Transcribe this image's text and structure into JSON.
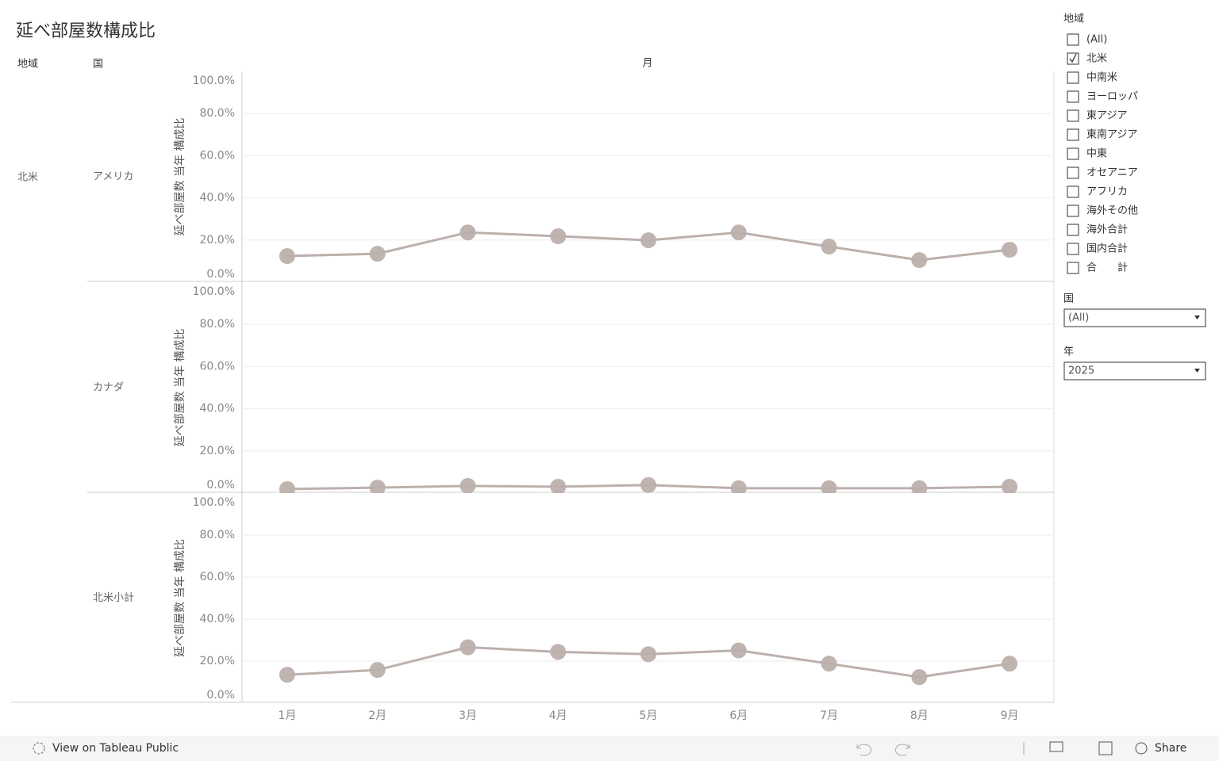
{
  "header": {
    "title": "延べ部屋数構成比",
    "region_header": "地域",
    "country_header": "国",
    "x_header": "月",
    "region": "北米"
  },
  "chart_data": [
    {
      "type": "line",
      "country": "アメリカ",
      "y_label": "延べ部屋数 当年 構成比",
      "color": "#bcb0ac",
      "values": [
        12.4,
        13.5,
        23.6,
        21.8,
        19.9,
        23.6,
        16.9,
        10.5,
        15.4
      ],
      "ylim": [
        0,
        100
      ],
      "yticks": [
        {
          "value": 0,
          "label": "0.0%"
        },
        {
          "value": 20,
          "label": "20.0%"
        },
        {
          "value": 40,
          "label": "40.0%"
        },
        {
          "value": 60,
          "label": "60.0%"
        },
        {
          "value": 80,
          "label": "80.0%"
        },
        {
          "value": 100,
          "label": "100.0%"
        }
      ],
      "grid": true
    },
    {
      "type": "line",
      "country": "カナダ",
      "y_label": "延べ部屋数 当年 構成比",
      "color": "#bcb0ac",
      "values": [
        1.9,
        2.6,
        3.4,
        3.0,
        3.8,
        2.3,
        2.3,
        2.3,
        3.0
      ],
      "ylim": [
        0,
        100
      ],
      "yticks": [
        {
          "value": 0,
          "label": "0.0%"
        },
        {
          "value": 20,
          "label": "20.0%"
        },
        {
          "value": 40,
          "label": "40.0%"
        },
        {
          "value": 60,
          "label": "60.0%"
        },
        {
          "value": 80,
          "label": "80.0%"
        },
        {
          "value": 100,
          "label": "100.0%"
        }
      ],
      "grid": true
    },
    {
      "type": "line",
      "country": "北米小計",
      "y_label": "延べ部屋数 当年 構成比",
      "color": "#bcb0ac",
      "categories": [
        "1月",
        "2月",
        "3月",
        "4月",
        "5月",
        "6月",
        "7月",
        "8月",
        "9月"
      ],
      "values": [
        13.5,
        15.8,
        26.6,
        24.4,
        23.3,
        25.1,
        18.8,
        12.4,
        18.8
      ],
      "ylim": [
        0,
        100
      ],
      "yticks": [
        {
          "value": 0,
          "label": "0.0%"
        },
        {
          "value": 20,
          "label": "20.0%"
        },
        {
          "value": 40,
          "label": "40.0%"
        },
        {
          "value": 60,
          "label": "60.0%"
        },
        {
          "value": 80,
          "label": "80.0%"
        },
        {
          "value": 100,
          "label": "100.0%"
        }
      ],
      "grid": true
    }
  ],
  "filters": {
    "region": {
      "label": "地域",
      "options": [
        {
          "label": "(All)",
          "checked": false
        },
        {
          "label": "北米",
          "checked": true
        },
        {
          "label": "中南米",
          "checked": false
        },
        {
          "label": "ヨーロッパ",
          "checked": false
        },
        {
          "label": "東アジア",
          "checked": false
        },
        {
          "label": "東南アジア",
          "checked": false
        },
        {
          "label": "中東",
          "checked": false
        },
        {
          "label": "オセアニア",
          "checked": false
        },
        {
          "label": "アフリカ",
          "checked": false
        },
        {
          "label": "海外その他",
          "checked": false
        },
        {
          "label": "海外合計",
          "checked": false
        },
        {
          "label": "国内合計",
          "checked": false
        },
        {
          "label": "合　　計",
          "checked": false
        }
      ]
    },
    "country": {
      "label": "国",
      "value": "(All)"
    },
    "year": {
      "label": "年",
      "value": "2025"
    }
  },
  "footer": {
    "link": "View on Tableau Public",
    "share": "Share"
  }
}
